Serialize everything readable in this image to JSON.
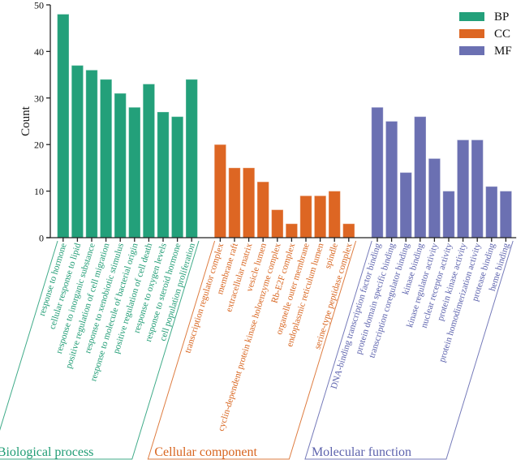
{
  "chart_data": {
    "type": "bar",
    "title": "",
    "xlabel": "",
    "ylabel": "Count",
    "ylim": [
      0,
      50
    ],
    "yticks": [
      0,
      10,
      20,
      30,
      40,
      50
    ],
    "grid": false,
    "legend_position": "top-right",
    "legend": [
      {
        "key": "BP",
        "label": "BP",
        "color": "#23a07a"
      },
      {
        "key": "CC",
        "label": "CC",
        "color": "#dd6623"
      },
      {
        "key": "MF",
        "label": "MF",
        "color": "#6b70b2"
      }
    ],
    "series": [
      {
        "name": "BP",
        "group_label": "Biological process",
        "color": "#23a07a",
        "label_color": "#1f9c74",
        "categories": [
          "response to hormone",
          "cellular response to lipid",
          "response to inorganic substance",
          "positive regulation of cell migration",
          "response to xenobiotic stimulus",
          "response to molecule of bacterial origin",
          "positive regulation of cell death",
          "response to oxygen levels",
          "response to steroid hormone",
          "cell population proliferation"
        ],
        "values": [
          48,
          37,
          36,
          34,
          31,
          28,
          33,
          27,
          26,
          34
        ]
      },
      {
        "name": "CC",
        "group_label": "Cellular component",
        "color": "#dd6623",
        "label_color": "#d8651f",
        "categories": [
          "transcription regulator complex",
          "membrane raft",
          "extracellular matrix",
          "vesicle lumen",
          "cyclin-dependent protein kinase holoenzyme complex",
          "Rb-E2F complex",
          "organelle outer membrane",
          "endoplasmic reticulum lumen",
          "spindle",
          "serine-type peptidase complex"
        ],
        "values": [
          20,
          15,
          15,
          12,
          6,
          3,
          9,
          9,
          10,
          3
        ]
      },
      {
        "name": "MF",
        "group_label": "Molecular function",
        "color": "#6b70b2",
        "label_color": "#5d63ad",
        "categories": [
          "DNA-binding transcription factor binding",
          "protein domain specific binding",
          "transcription coregulator binding",
          "kinase binding",
          "kinase regulator activity",
          "nuclear receptor activity",
          "protein kinase activity",
          "protein homodimerization activity",
          "protease binding",
          "heme binding"
        ],
        "values": [
          28,
          25,
          14,
          26,
          17,
          10,
          21,
          21,
          11,
          10
        ]
      }
    ]
  }
}
